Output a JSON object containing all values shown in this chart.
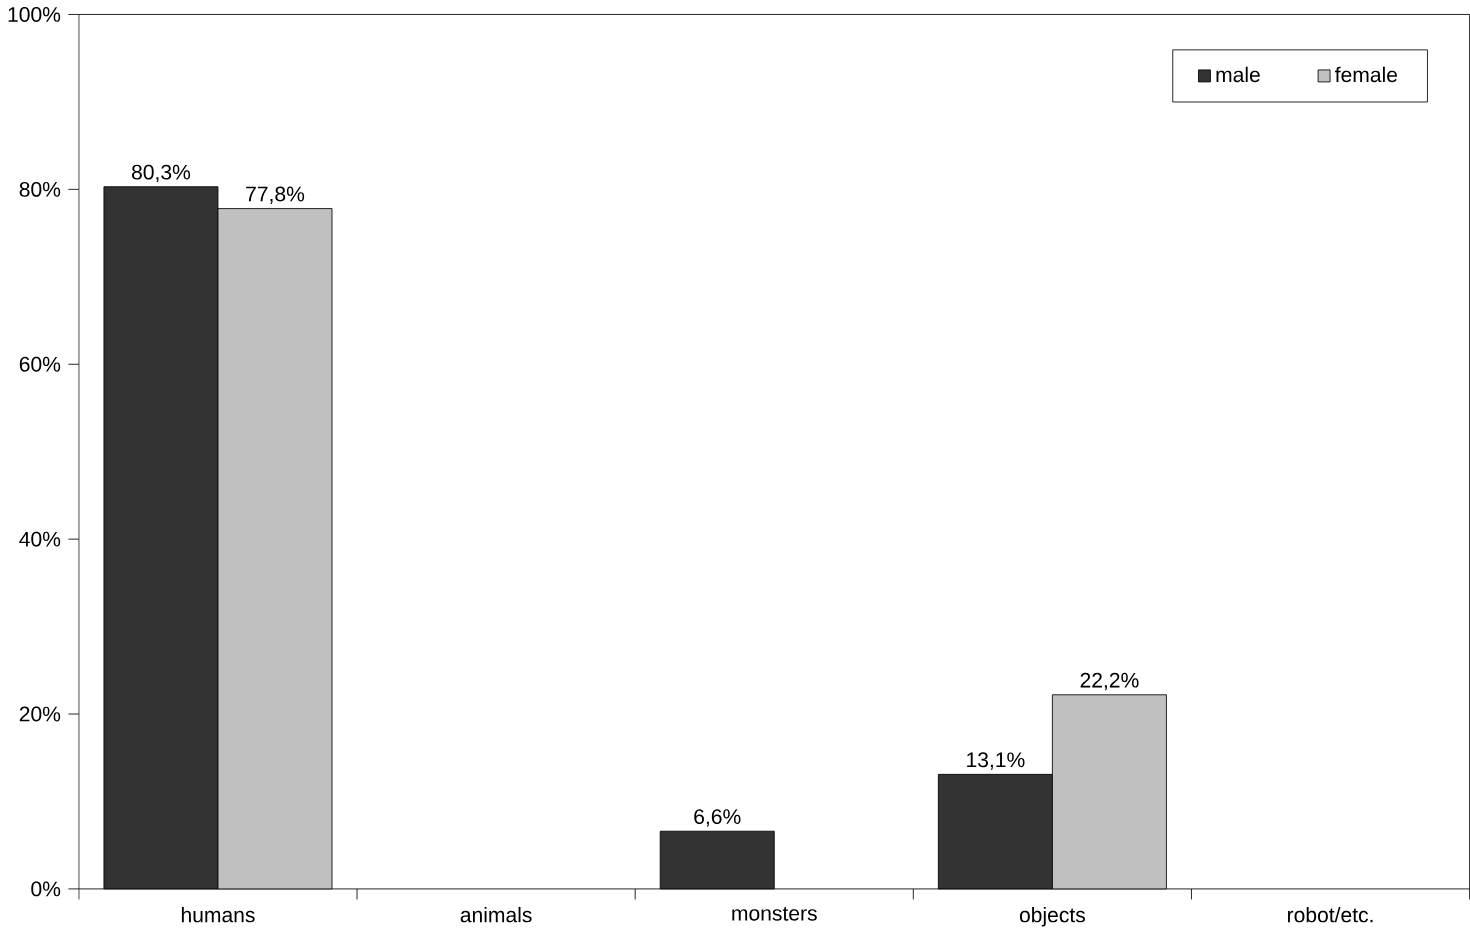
{
  "chart_data": {
    "type": "bar",
    "categories": [
      "humans",
      "animals",
      "monsters",
      "objects",
      "robot/etc."
    ],
    "series": [
      {
        "name": "male",
        "color": "#333333",
        "values": [
          80.3,
          null,
          6.6,
          13.1,
          null
        ],
        "value_labels": [
          "80,3%",
          null,
          "6,6%",
          "13,1%",
          null
        ]
      },
      {
        "name": "female",
        "color": "#c0c0c0",
        "values": [
          77.8,
          null,
          null,
          22.2,
          null
        ],
        "value_labels": [
          "77,8%",
          null,
          null,
          "22,2%",
          null
        ]
      }
    ],
    "ylim": [
      0,
      100
    ],
    "yticks": [
      {
        "value": 0,
        "label": "0%"
      },
      {
        "value": 20,
        "label": "20%"
      },
      {
        "value": 40,
        "label": "40%"
      },
      {
        "value": 60,
        "label": "60%"
      },
      {
        "value": 80,
        "label": "80%"
      },
      {
        "value": 100,
        "label": "100%"
      }
    ],
    "grid": false,
    "legend": "top right"
  }
}
